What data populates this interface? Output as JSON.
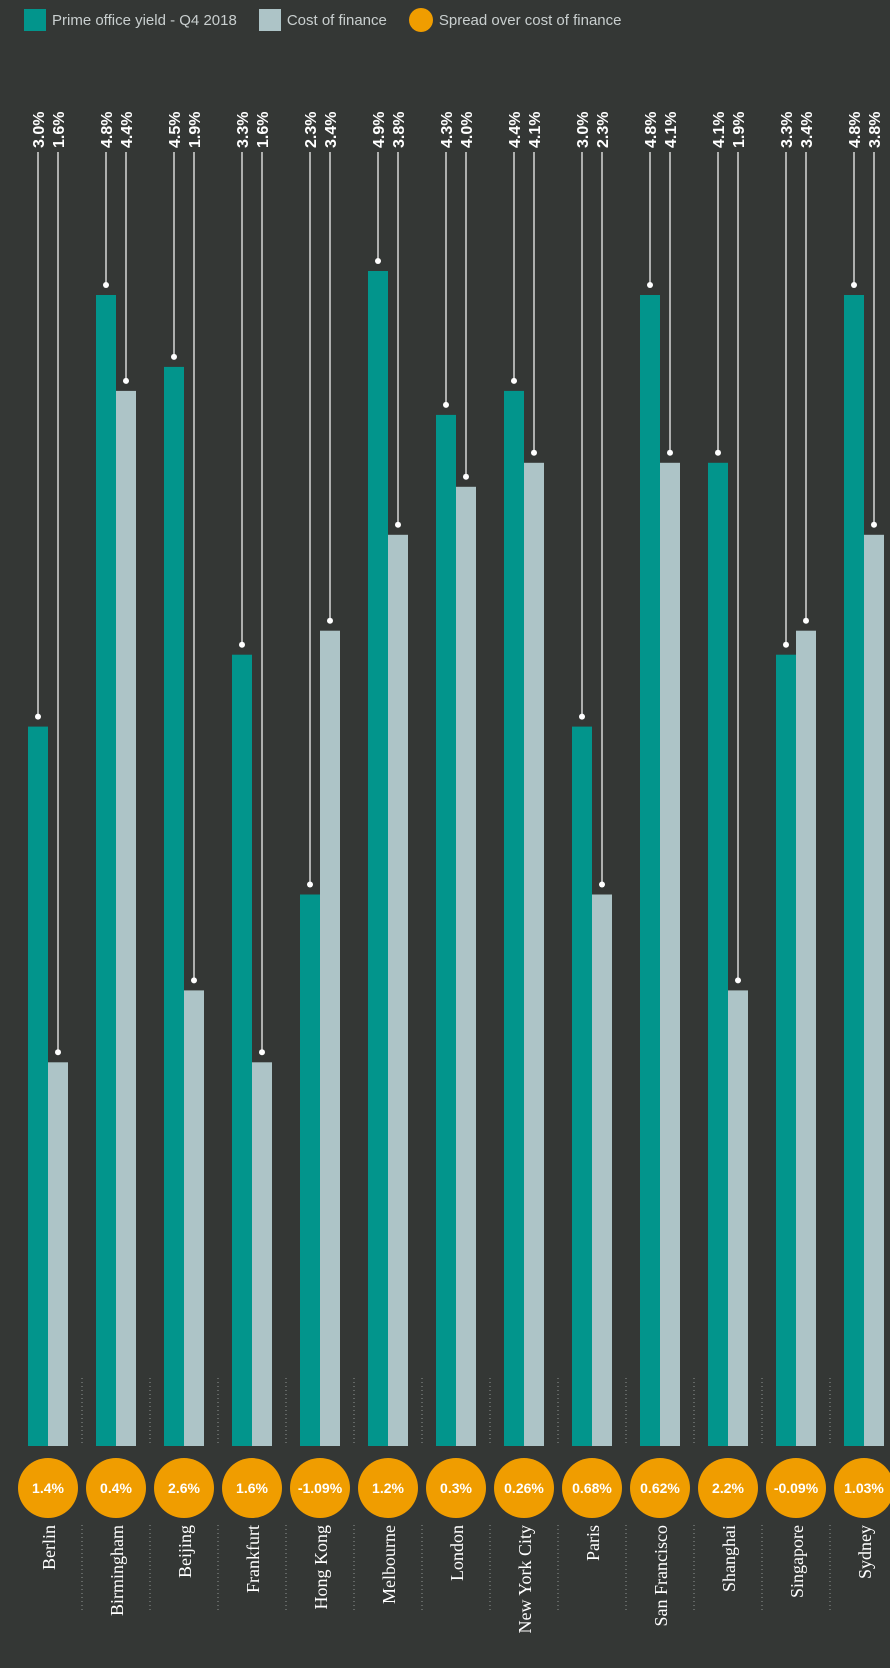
{
  "legend": {
    "yield_label": "Prime office yield - Q4 2018",
    "finance_label": "Cost of finance",
    "spread_label": "Spread over cost of finance"
  },
  "colors": {
    "background": "#343735",
    "yield": "#02958c",
    "finance": "#adc4c7",
    "spread": "#f09d00"
  },
  "chart_data": {
    "type": "bar",
    "categories": [
      "Berlin",
      "Birmingham",
      "Beijing",
      "Frankfurt",
      "Hong Kong",
      "Melbourne",
      "London",
      "New York City",
      "Paris",
      "San Francisco",
      "Shanghai",
      "Singapore",
      "Sydney"
    ],
    "series": [
      {
        "name": "Prime office yield - Q4 2018",
        "values": [
          3.0,
          4.8,
          4.5,
          3.3,
          2.3,
          4.9,
          4.3,
          4.4,
          3.0,
          4.8,
          4.1,
          3.3,
          4.8
        ]
      },
      {
        "name": "Cost of finance",
        "values": [
          1.6,
          4.4,
          1.9,
          1.6,
          3.4,
          3.8,
          4.0,
          4.1,
          2.3,
          4.1,
          1.9,
          3.4,
          3.8
        ]
      }
    ],
    "value_labels": {
      "yield": [
        "3.0%",
        "4.8%",
        "4.5%",
        "3.3%",
        "2.3%",
        "4.9%",
        "4.3%",
        "4.4%",
        "3.0%",
        "4.8%",
        "4.1%",
        "3.3%",
        "4.8%"
      ],
      "finance": [
        "1.6%",
        "4.4%",
        "1.9%",
        "1.6%",
        "3.4%",
        "3.8%",
        "4.0%",
        "4.1%",
        "2.3%",
        "4.1%",
        "1.9%",
        "3.4%",
        "3.8%"
      ]
    },
    "spread": {
      "name": "Spread over cost of finance",
      "labels": [
        "1.4%",
        "0.4%",
        "2.6%",
        "1.6%",
        "-1.09%",
        "1.2%",
        "0.3%",
        "0.26%",
        "0.68%",
        "0.62%",
        "2.2%",
        "-0.09%",
        "1.03%"
      ]
    },
    "ylim": [
      0,
      5.0
    ],
    "legend_position": "top-left",
    "grid": false
  }
}
